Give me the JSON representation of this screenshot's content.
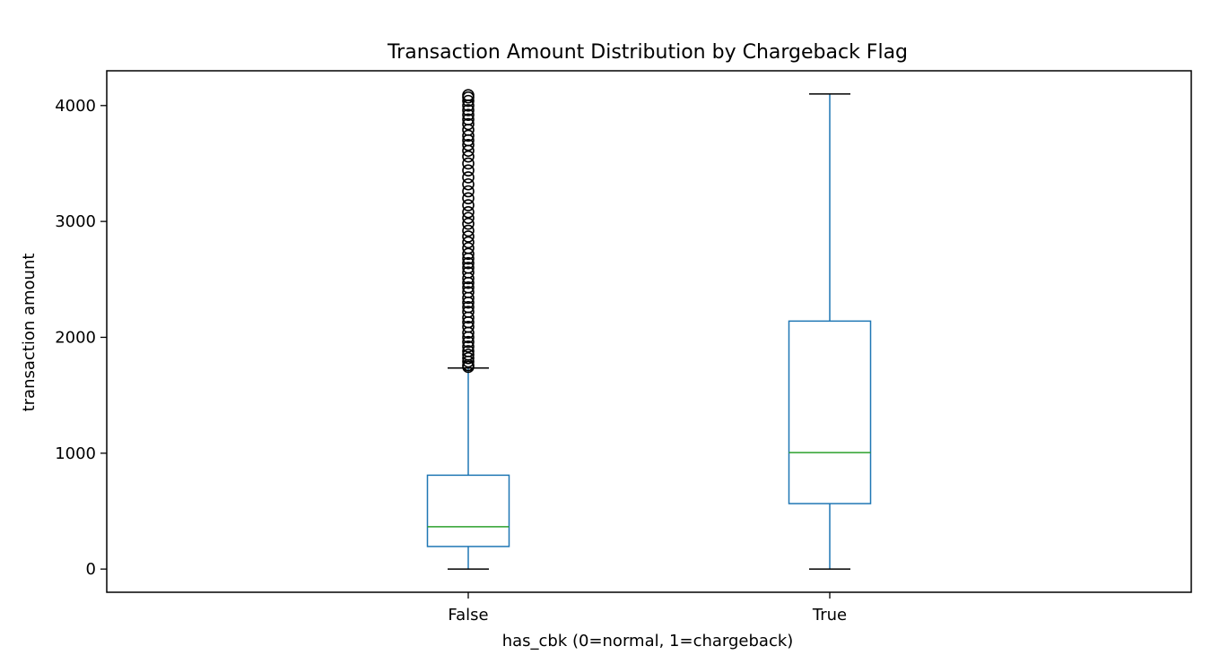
{
  "chart_data": {
    "type": "box",
    "title": "Transaction Amount Distribution by Chargeback Flag",
    "xlabel": "has_cbk (0=normal, 1=chargeback)",
    "ylabel": "transaction amount",
    "ylim": [
      -200,
      4300
    ],
    "yticks": [
      0,
      1000,
      2000,
      3000,
      4000
    ],
    "grid": false,
    "categories": [
      "False",
      "True"
    ],
    "boxes": [
      {
        "category": "False",
        "whisker_low": 0,
        "q1": 195,
        "median": 365,
        "q3": 810,
        "whisker_high": 1735,
        "outliers": [
          1745,
          1760,
          1790,
          1820,
          1850,
          1880,
          1920,
          1960,
          2000,
          2040,
          2090,
          2130,
          2170,
          2220,
          2260,
          2300,
          2340,
          2390,
          2430,
          2470,
          2510,
          2560,
          2600,
          2640,
          2680,
          2720,
          2770,
          2820,
          2870,
          2920,
          2980,
          3030,
          3080,
          3140,
          3200,
          3260,
          3320,
          3380,
          3440,
          3500,
          3560,
          3610,
          3660,
          3700,
          3740,
          3790,
          3840,
          3880,
          3920,
          3960,
          4000,
          4040,
          4070,
          4090
        ]
      },
      {
        "category": "True",
        "whisker_low": 0,
        "q1": 565,
        "median": 1005,
        "q3": 2140,
        "whisker_high": 4100,
        "outliers": []
      }
    ],
    "colors": {
      "box": "#1f77b4",
      "median": "#2ca02c",
      "cap": "#000000",
      "outlier": "#000000",
      "axis": "#000000"
    }
  }
}
